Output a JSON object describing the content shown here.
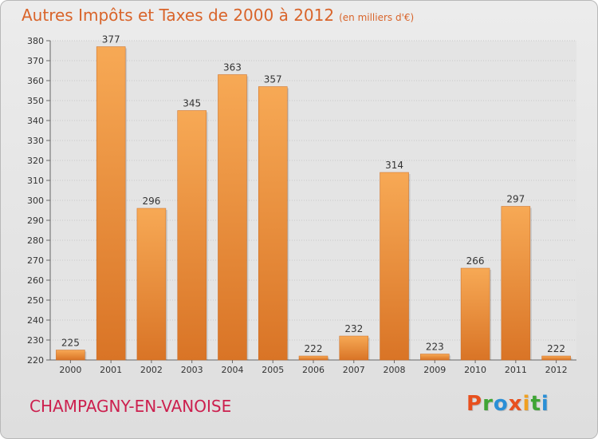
{
  "header": {
    "title": "Autres Impôts et Taxes de 2000 à 2012",
    "unit": "(en milliers d'€)"
  },
  "footer": {
    "commune": "CHAMPAGNY-EN-VANOISE",
    "logo_text": "Proxiti"
  },
  "colors": {
    "bar_light": "#f7a955",
    "bar_dark": "#d97426",
    "title": "#d9642a",
    "commune": "#cc1f4e"
  },
  "chart_data": {
    "type": "bar",
    "title": "Autres Impôts et Taxes de 2000 à 2012",
    "subtitle": "(en milliers d'€)",
    "xlabel": "",
    "ylabel": "",
    "categories": [
      "2000",
      "2001",
      "2002",
      "2003",
      "2004",
      "2005",
      "2006",
      "2007",
      "2008",
      "2009",
      "2010",
      "2011",
      "2012"
    ],
    "values": [
      225,
      377,
      296,
      345,
      363,
      357,
      222,
      232,
      314,
      223,
      266,
      297,
      222
    ],
    "ylim": [
      220,
      380
    ],
    "yticks": [
      220,
      230,
      240,
      250,
      260,
      270,
      280,
      290,
      300,
      310,
      320,
      330,
      340,
      350,
      360,
      370,
      380
    ],
    "grid": true,
    "data_labels": true
  }
}
